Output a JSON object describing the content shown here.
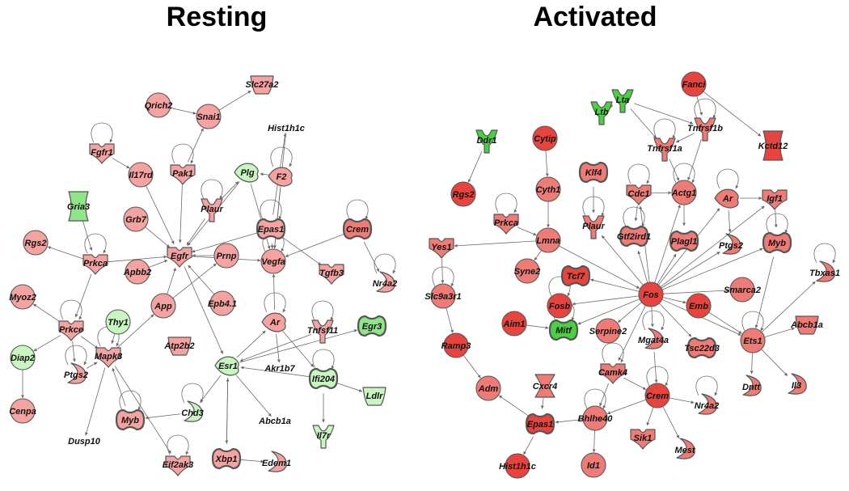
{
  "titles": {
    "resting": "Resting",
    "activated": "Activated"
  },
  "colors": {
    "up_light": "#f4a3a0",
    "up_mid": "#ee7b76",
    "up_strong": "#e8443f",
    "down_light": "#c8f5c0",
    "down_mid": "#8fe588",
    "down_strong": "#49d13f",
    "outline": "#555555"
  },
  "resting": {
    "nodes": [
      {
        "id": "Slc27a2",
        "label": "Slc27a2",
        "shape": "cup",
        "fill": "up_light"
      },
      {
        "id": "Qrich2",
        "label": "Qrich2",
        "shape": "circle",
        "fill": "up_light"
      },
      {
        "id": "Snai1",
        "label": "Snai1",
        "shape": "circle",
        "fill": "up_light"
      },
      {
        "id": "Hist1h1c",
        "label": "Hist1h1c",
        "shape": "none",
        "fill": "up_light"
      },
      {
        "id": "Fgfr1",
        "label": "Fgfr1",
        "shape": "heart",
        "fill": "up_light"
      },
      {
        "id": "Il17rd",
        "label": "Il17rd",
        "shape": "circle",
        "fill": "up_light"
      },
      {
        "id": "Pak1",
        "label": "Pak1",
        "shape": "heart",
        "fill": "up_light"
      },
      {
        "id": "Plg",
        "label": "Plg",
        "shape": "scissor",
        "fill": "down_light"
      },
      {
        "id": "F2",
        "label": "F2",
        "shape": "scissor",
        "fill": "up_light"
      },
      {
        "id": "Gria3",
        "label": "Gria3",
        "shape": "hourglass",
        "fill": "down_mid"
      },
      {
        "id": "Grb7",
        "label": "Grb7",
        "shape": "circle",
        "fill": "up_light"
      },
      {
        "id": "Plaur",
        "label": "Plaur",
        "shape": "ushape",
        "fill": "up_light"
      },
      {
        "id": "Epas1",
        "label": "Epas1",
        "shape": "pill",
        "fill": "up_light"
      },
      {
        "id": "Crem",
        "label": "Crem",
        "shape": "pill",
        "fill": "up_mid"
      },
      {
        "id": "Rgs2",
        "label": "Rgs2",
        "shape": "circle",
        "fill": "up_light"
      },
      {
        "id": "Prkca",
        "label": "Prkca",
        "shape": "heart",
        "fill": "up_light"
      },
      {
        "id": "Egfr",
        "label": "Egfr",
        "shape": "heart",
        "fill": "up_light"
      },
      {
        "id": "Prnp",
        "label": "Prnp",
        "shape": "circle",
        "fill": "up_light"
      },
      {
        "id": "Vegfa",
        "label": "Vegfa",
        "shape": "circle",
        "fill": "up_light"
      },
      {
        "id": "Tgfb3",
        "label": "Tgfb3",
        "shape": "heart",
        "fill": "up_light"
      },
      {
        "id": "Nr4a2",
        "label": "Nr4a2",
        "shape": "hook",
        "fill": "up_light"
      },
      {
        "id": "Apbb2",
        "label": "Apbb2",
        "shape": "circle",
        "fill": "up_light"
      },
      {
        "id": "Myoz2",
        "label": "Myoz2",
        "shape": "circle",
        "fill": "up_light"
      },
      {
        "id": "App",
        "label": "App",
        "shape": "circle",
        "fill": "up_light"
      },
      {
        "id": "Epb41",
        "label": "Epb4.1",
        "shape": "circle",
        "fill": "up_light"
      },
      {
        "id": "Thy1",
        "label": "Thy1",
        "shape": "circle",
        "fill": "down_light"
      },
      {
        "id": "Ar",
        "label": "Ar",
        "shape": "scissor",
        "fill": "up_light"
      },
      {
        "id": "Tnfsf11",
        "label": "Tnfsf11",
        "shape": "ushape",
        "fill": "up_light"
      },
      {
        "id": "Egr3",
        "label": "Egr3",
        "shape": "pill",
        "fill": "down_mid"
      },
      {
        "id": "Prkce",
        "label": "Prkce",
        "shape": "heart",
        "fill": "up_light"
      },
      {
        "id": "Diap2",
        "label": "Diap2",
        "shape": "circle",
        "fill": "down_light"
      },
      {
        "id": "Atp2b2",
        "label": "Atp2b2",
        "shape": "cup",
        "fill": "up_light"
      },
      {
        "id": "Mapk8",
        "label": "Mapk8",
        "shape": "heart",
        "fill": "up_light"
      },
      {
        "id": "Ptgs2",
        "label": "Ptgs2",
        "shape": "hook",
        "fill": "up_light"
      },
      {
        "id": "Esr1",
        "label": "Esr1",
        "shape": "scissor",
        "fill": "down_light"
      },
      {
        "id": "Akr1b7",
        "label": "Akr1b7",
        "shape": "none",
        "fill": "up_light"
      },
      {
        "id": "Ifi204",
        "label": "Ifi204",
        "shape": "pill",
        "fill": "down_light"
      },
      {
        "id": "Ldlr",
        "label": "Ldlr",
        "shape": "cup",
        "fill": "down_light"
      },
      {
        "id": "Cenpa",
        "label": "Cenpa",
        "shape": "circle",
        "fill": "up_light"
      },
      {
        "id": "Myb",
        "label": "Myb",
        "shape": "pill",
        "fill": "up_light"
      },
      {
        "id": "Chd3",
        "label": "Chd3",
        "shape": "hook",
        "fill": "down_light"
      },
      {
        "id": "Abcb1a",
        "label": "Abcb1a",
        "shape": "none",
        "fill": "up_light"
      },
      {
        "id": "Il7r",
        "label": "Il7r",
        "shape": "ushape",
        "fill": "down_light"
      },
      {
        "id": "Dusp10",
        "label": "Dusp10",
        "shape": "none",
        "fill": "up_light"
      },
      {
        "id": "Eif2ak3",
        "label": "Eif2ak3",
        "shape": "heart",
        "fill": "up_light"
      },
      {
        "id": "Xbp1",
        "label": "Xbp1",
        "shape": "pill",
        "fill": "up_light"
      },
      {
        "id": "Edem1",
        "label": "Edem1",
        "shape": "hook",
        "fill": "up_light"
      }
    ],
    "edges": [
      [
        "Snai1",
        "Slc27a2"
      ],
      [
        "Qrich2",
        "Snai1"
      ],
      [
        "Pak1",
        "Snai1"
      ],
      [
        "Fgfr1",
        "Il17rd"
      ],
      [
        "Il17rd",
        "Egfr"
      ],
      [
        "Pak1",
        "Egfr"
      ],
      [
        "Plg",
        "Egfr"
      ],
      [
        "F2",
        "Plg"
      ],
      [
        "Plaur",
        "Plg"
      ],
      [
        "Plaur",
        "Egfr"
      ],
      [
        "Grb7",
        "Egfr"
      ],
      [
        "Epas1",
        "Hist1h1c"
      ],
      [
        "Epas1",
        "Vegfa"
      ],
      [
        "Epas1",
        "Egfr"
      ],
      [
        "Crem",
        "Nr4a2"
      ],
      [
        "Crem",
        "Vegfa"
      ],
      [
        "Epas1",
        "Tgfb3"
      ],
      [
        "Prkca",
        "Rgs2"
      ],
      [
        "Prkca",
        "Egfr"
      ],
      [
        "Gria3",
        "Prkca"
      ],
      [
        "Apbb2",
        "Egfr"
      ],
      [
        "Prnp",
        "Egfr"
      ],
      [
        "App",
        "Egfr"
      ],
      [
        "App",
        "Prnp"
      ],
      [
        "Epb41",
        "Egfr"
      ],
      [
        "Egfr",
        "Esr1"
      ],
      [
        "Thy1",
        "Mapk8"
      ],
      [
        "Mapk8",
        "App"
      ],
      [
        "Prkca",
        "Prkce"
      ],
      [
        "Prkce",
        "Myoz2"
      ],
      [
        "Prkce",
        "Diap2"
      ],
      [
        "Prkce",
        "Ptgs2"
      ],
      [
        "Prkce",
        "Mapk8"
      ],
      [
        "Diap2",
        "Cenpa"
      ],
      [
        "Ptgs2",
        "Mapk8"
      ],
      [
        "Mapk8",
        "Dusp10"
      ],
      [
        "Mapk8",
        "Eif2ak3"
      ],
      [
        "Myb",
        "Mapk8"
      ],
      [
        "Chd3",
        "Myb"
      ],
      [
        "Esr1",
        "Chd3"
      ],
      [
        "Esr1",
        "Xbp1"
      ],
      [
        "Xbp1",
        "Esr1"
      ],
      [
        "Esr1",
        "Ar"
      ],
      [
        "Ar",
        "Akr1b7"
      ],
      [
        "Ar",
        "Vegfa"
      ],
      [
        "Esr1",
        "Egr3"
      ],
      [
        "Ifi204",
        "Esr1"
      ],
      [
        "Ifi204",
        "Ldlr"
      ],
      [
        "Ifi204",
        "Il7r"
      ],
      [
        "Esr1",
        "Abcb1a"
      ],
      [
        "Xbp1",
        "Edem1"
      ],
      [
        "Plg",
        "Vegfa"
      ],
      [
        "F2",
        "Vegfa"
      ],
      [
        "Hist1h1c",
        "Vegfa"
      ],
      [
        "Tnfsf11",
        "Esr1"
      ],
      [
        "Ar",
        "Ifi204"
      ],
      [
        "Egfr",
        "Vegfa"
      ]
    ]
  },
  "activated": {
    "nodes": [
      {
        "id": "Fanci",
        "label": "Fanci",
        "shape": "circle",
        "fill": "up_strong"
      },
      {
        "id": "Lta",
        "label": "Lta",
        "shape": "ushape",
        "fill": "down_strong"
      },
      {
        "id": "Ltb",
        "label": "Ltb",
        "shape": "ushape",
        "fill": "down_strong"
      },
      {
        "id": "Ddr1",
        "label": "Ddr1",
        "shape": "ushape",
        "fill": "down_strong"
      },
      {
        "id": "Cytip",
        "label": "Cytip",
        "shape": "circle",
        "fill": "up_strong"
      },
      {
        "id": "Tnfrsf1b",
        "label": "Tnfrsf1b",
        "shape": "ushape",
        "fill": "up_mid"
      },
      {
        "id": "Tnfrsf1a",
        "label": "Tnfrsf1a",
        "shape": "ushape",
        "fill": "up_mid"
      },
      {
        "id": "Kctd12",
        "label": "Kctd12",
        "shape": "hourglass",
        "fill": "up_strong"
      },
      {
        "id": "Rgs2b",
        "label": "Rgs2",
        "shape": "circle",
        "fill": "up_strong"
      },
      {
        "id": "Cyth1",
        "label": "Cyth1",
        "shape": "circle",
        "fill": "up_mid"
      },
      {
        "id": "Klf4",
        "label": "Klf4",
        "shape": "pill",
        "fill": "up_mid"
      },
      {
        "id": "Cdc1",
        "label": "Cdc1",
        "shape": "heart",
        "fill": "up_mid"
      },
      {
        "id": "Actg1",
        "label": "Actg1",
        "shape": "circle",
        "fill": "up_mid"
      },
      {
        "id": "Arb",
        "label": "Ar",
        "shape": "scissor",
        "fill": "up_mid"
      },
      {
        "id": "Igf1",
        "label": "Igf1",
        "shape": "heart",
        "fill": "up_mid"
      },
      {
        "id": "Prkcab",
        "label": "Prkca",
        "shape": "heart",
        "fill": "up_mid"
      },
      {
        "id": "Lmna",
        "label": "Lmna",
        "shape": "circle",
        "fill": "up_mid"
      },
      {
        "id": "Plaurb",
        "label": "Plaur",
        "shape": "ushape",
        "fill": "up_mid"
      },
      {
        "id": "Gtf2ird1",
        "label": "Gtf2ird1",
        "shape": "pill",
        "fill": "up_mid"
      },
      {
        "id": "Plagl1",
        "label": "Plagl1",
        "shape": "pill",
        "fill": "up_mid"
      },
      {
        "id": "Ptgs2b",
        "label": "Ptgs2",
        "shape": "hook",
        "fill": "up_mid"
      },
      {
        "id": "Mybb",
        "label": "Myb",
        "shape": "pill",
        "fill": "up_mid"
      },
      {
        "id": "Yes1",
        "label": "Yes1",
        "shape": "heart",
        "fill": "up_mid"
      },
      {
        "id": "Syne2",
        "label": "Syne2",
        "shape": "circle",
        "fill": "up_mid"
      },
      {
        "id": "Tcf7",
        "label": "Tcf7",
        "shape": "pill",
        "fill": "up_strong"
      },
      {
        "id": "Fosb",
        "label": "Fosb",
        "shape": "circle",
        "fill": "up_strong"
      },
      {
        "id": "Fos",
        "label": "Fos",
        "shape": "circle",
        "fill": "up_strong"
      },
      {
        "id": "Smarca2",
        "label": "Smarca2",
        "shape": "circle",
        "fill": "up_mid"
      },
      {
        "id": "Tbxas1",
        "label": "Tbxas1",
        "shape": "hook",
        "fill": "up_mid"
      },
      {
        "id": "Slc9a3r1",
        "label": "Slc9a3r1",
        "shape": "circle",
        "fill": "up_mid"
      },
      {
        "id": "Emb",
        "label": "Emb",
        "shape": "circle",
        "fill": "up_strong"
      },
      {
        "id": "Aim1",
        "label": "Aim1",
        "shape": "circle",
        "fill": "up_strong"
      },
      {
        "id": "Mitf",
        "label": "Mitf",
        "shape": "pill",
        "fill": "down_strong"
      },
      {
        "id": "Serpine2",
        "label": "Serpine2",
        "shape": "circle",
        "fill": "up_mid"
      },
      {
        "id": "Mgat4a",
        "label": "Mgat4a",
        "shape": "hook",
        "fill": "up_mid"
      },
      {
        "id": "Tsc22d3",
        "label": "Tsc22d3",
        "shape": "pill",
        "fill": "up_mid"
      },
      {
        "id": "Ets1",
        "label": "Ets1",
        "shape": "circle",
        "fill": "up_mid"
      },
      {
        "id": "Abcb1ab",
        "label": "Abcb1a",
        "shape": "cup",
        "fill": "up_mid"
      },
      {
        "id": "Ramp3",
        "label": "Ramp3",
        "shape": "circle",
        "fill": "up_strong"
      },
      {
        "id": "Camk4",
        "label": "Camk4",
        "shape": "heart",
        "fill": "up_mid"
      },
      {
        "id": "Cxcr4",
        "label": "Cxcr4",
        "shape": "hourglass2",
        "fill": "up_mid"
      },
      {
        "id": "Crem2",
        "label": "Crem",
        "shape": "circle",
        "fill": "up_strong"
      },
      {
        "id": "Dntt",
        "label": "Dntt",
        "shape": "hook",
        "fill": "up_mid"
      },
      {
        "id": "Il3",
        "label": "Il3",
        "shape": "hook",
        "fill": "up_mid"
      },
      {
        "id": "Adm",
        "label": "Adm",
        "shape": "circle",
        "fill": "up_mid"
      },
      {
        "id": "Nr4a2b",
        "label": "Nr4a2",
        "shape": "hook",
        "fill": "up_mid"
      },
      {
        "id": "Epas1b",
        "label": "Epas1",
        "shape": "pill",
        "fill": "up_strong"
      },
      {
        "id": "Bhlhe40",
        "label": "Bhlhe40",
        "shape": "circle",
        "fill": "up_mid"
      },
      {
        "id": "Sik1",
        "label": "Sik1",
        "shape": "heart",
        "fill": "up_mid"
      },
      {
        "id": "Mest",
        "label": "Mest",
        "shape": "hook",
        "fill": "up_mid"
      },
      {
        "id": "Hist1h1cb",
        "label": "Hist1h1c",
        "shape": "circle",
        "fill": "up_strong"
      },
      {
        "id": "Id1",
        "label": "Id1",
        "shape": "circle",
        "fill": "up_mid"
      }
    ],
    "edges": [
      [
        "Lta",
        "Ltb"
      ],
      [
        "Lta",
        "Tnfrsf1a"
      ],
      [
        "Lta",
        "Tnfrsf1b"
      ],
      [
        "Fanci",
        "Tnfrsf1b"
      ],
      [
        "Fanci",
        "Kctd12"
      ],
      [
        "Tnfrsf1b",
        "Tnfrsf1a"
      ],
      [
        "Tnfrsf1a",
        "Actg1"
      ],
      [
        "Tnfrsf1b",
        "Actg1"
      ],
      [
        "Ddr1",
        "Rgs2b"
      ],
      [
        "Cytip",
        "Cyth1"
      ],
      [
        "Cyth1",
        "Lmna"
      ],
      [
        "Klf4",
        "Plaurb"
      ],
      [
        "Cdc1",
        "Actg1"
      ],
      [
        "Cdc1",
        "Gtf2ird1"
      ],
      [
        "Actg1",
        "Plagl1"
      ],
      [
        "Arb",
        "Igf1"
      ],
      [
        "Igf1",
        "Mybb"
      ],
      [
        "Arb",
        "Ptgs2b"
      ],
      [
        "Prkcab",
        "Lmna"
      ],
      [
        "Lmna",
        "Syne2"
      ],
      [
        "Lmna",
        "Yes1"
      ],
      [
        "Yes1",
        "Slc9a3r1"
      ],
      [
        "Slc9a3r1",
        "Ramp3"
      ],
      [
        "Ramp3",
        "Adm"
      ],
      [
        "Lmna",
        "Fos"
      ],
      [
        "Fos",
        "Plaurb"
      ],
      [
        "Fos",
        "Cdc1"
      ],
      [
        "Fos",
        "Gtf2ird1"
      ],
      [
        "Fos",
        "Plagl1"
      ],
      [
        "Fos",
        "Actg1"
      ],
      [
        "Fos",
        "Arb"
      ],
      [
        "Fos",
        "Ptgs2b"
      ],
      [
        "Fos",
        "Mybb"
      ],
      [
        "Fos",
        "Tcf7"
      ],
      [
        "Fos",
        "Fosb"
      ],
      [
        "Fos",
        "Smarca2"
      ],
      [
        "Fos",
        "Emb"
      ],
      [
        "Fos",
        "Serpine2"
      ],
      [
        "Fos",
        "Mgat4a"
      ],
      [
        "Fos",
        "Tsc22d3"
      ],
      [
        "Fos",
        "Camk4"
      ],
      [
        "Fos",
        "Mitf"
      ],
      [
        "Fos",
        "Ets1"
      ],
      [
        "Aim1",
        "Mitf"
      ],
      [
        "Mybb",
        "Ets1"
      ],
      [
        "Ets1",
        "Tbxas1"
      ],
      [
        "Ets1",
        "Abcb1ab"
      ],
      [
        "Ets1",
        "Dntt"
      ],
      [
        "Ets1",
        "Il3"
      ],
      [
        "Emb",
        "Ets1"
      ],
      [
        "Camk4",
        "Crem2"
      ],
      [
        "Mgat4a",
        "Crem2"
      ],
      [
        "Crem2",
        "Nr4a2b"
      ],
      [
        "Crem2",
        "Mest"
      ],
      [
        "Crem2",
        "Sik1"
      ],
      [
        "Crem2",
        "Bhlhe40"
      ],
      [
        "Bhlhe40",
        "Epas1b"
      ],
      [
        "Bhlhe40",
        "Id1"
      ],
      [
        "Epas1b",
        "Adm"
      ],
      [
        "Epas1b",
        "Hist1h1cb"
      ],
      [
        "Cxcr4",
        "Epas1b"
      ],
      [
        "Camk4",
        "Bhlhe40"
      ],
      [
        "Fos",
        "Igf1"
      ]
    ]
  }
}
